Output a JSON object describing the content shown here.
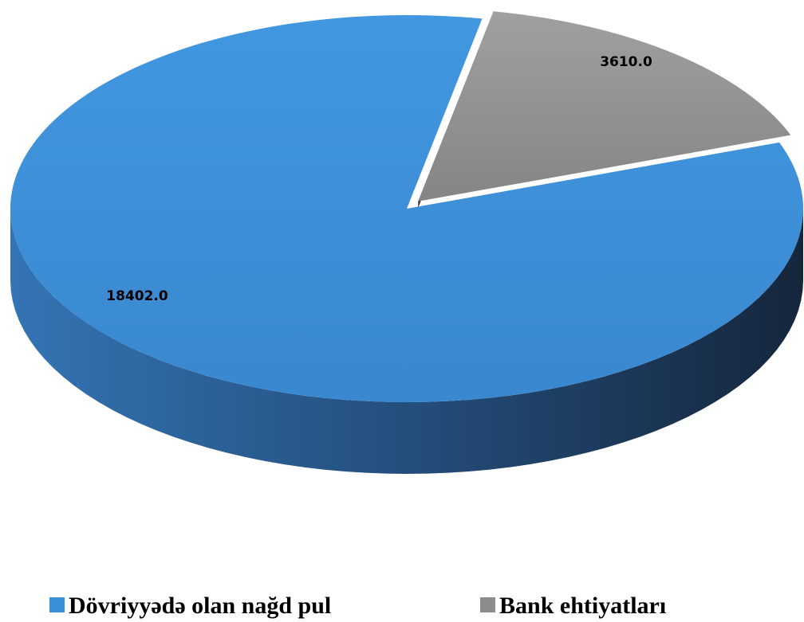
{
  "chart_data": {
    "type": "pie",
    "categories": [
      "Dövriyyədə olan nağd pul",
      "Bank ehtiyatları"
    ],
    "values": [
      18402.0,
      3610.0
    ],
    "value_labels": [
      "18402.0",
      "3610.0"
    ],
    "colors": [
      "#3b8fd9",
      "#8c8c8c"
    ],
    "legend": "bottom"
  }
}
